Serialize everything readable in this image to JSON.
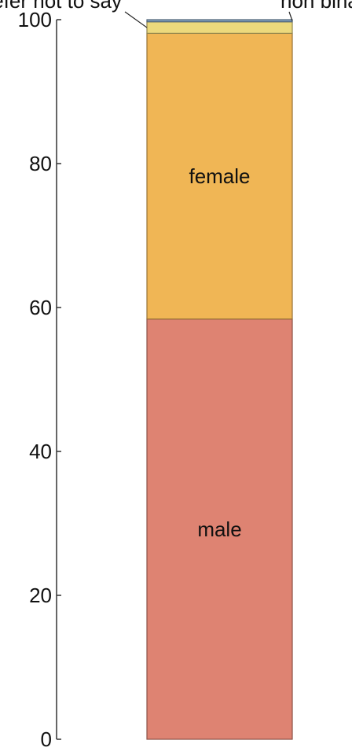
{
  "chart_data": {
    "type": "bar",
    "stacked": true,
    "categories": [
      ""
    ],
    "ylim": [
      0,
      100
    ],
    "yticks": [
      "0",
      "20",
      "40",
      "60",
      "80",
      "100"
    ],
    "xlabel": "",
    "ylabel": "",
    "grid": false,
    "legend": "none",
    "series": [
      {
        "name": "male",
        "values": [
          58.4
        ],
        "color": "#de8372",
        "label_placement": "inside"
      },
      {
        "name": "female",
        "values": [
          39.7
        ],
        "color": "#f0b655",
        "label_placement": "inside"
      },
      {
        "name": "prefer not to say",
        "values": [
          1.6
        ],
        "color": "#ecd97c",
        "label_placement": "callout-left"
      },
      {
        "name": "non binary",
        "values": [
          0.3
        ],
        "color": "#7f9fbf",
        "label_placement": "callout-right"
      }
    ]
  }
}
